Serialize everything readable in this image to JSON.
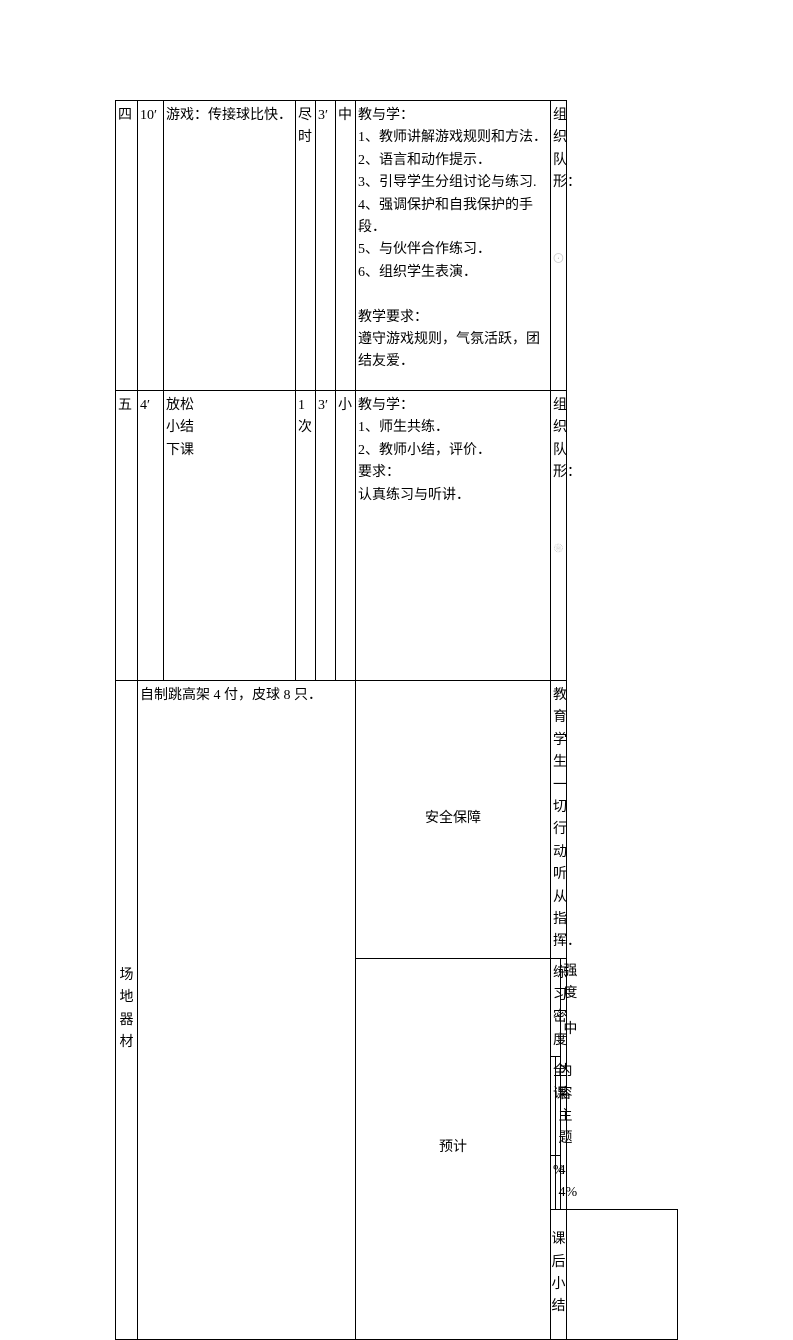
{
  "rows": [
    {
      "num": "四",
      "time": "10′",
      "content": "游戏：传接球比快．",
      "reps_top": "尽",
      "reps_bot": "时",
      "dur": "3′",
      "intensity": "中",
      "teaching": "教与学：\n1、教师讲解游戏规则和方法．\n2、语言和动作提示．\n3、引导学生分组讨论与练习.\n4、强调保护和自我保护的手段．\n5、与伙伴合作练习．\n6、组织学生表演．\n\n教学要求：\n遵守游戏规则，气氛活跃，团结友爱．",
      "formation_label": "组织队形："
    },
    {
      "num": "五",
      "time": "4′",
      "content_lines": [
        "放松",
        "小结",
        "下课"
      ],
      "reps": "1次",
      "dur": "3′",
      "intensity": "小",
      "teaching": "教与学：\n1、师生共练．\n2、教师小结，评价．\n要求：\n认真练习与听讲．",
      "formation_label": "组织队形："
    }
  ],
  "bottom": {
    "equip_label": "场地器材",
    "equip_text": "自制跳高架 4 付，皮球 8 只．",
    "safety_label": "安全保障",
    "safety_text": "教育学生一切行动听从指挥．",
    "forecast": "预计",
    "density_label": "练习密度",
    "intensity_label": "强度",
    "whole": "全课",
    "content_topic": "内容主题",
    "intensity_value": "中",
    "whole_val": "%",
    "topic_val": "44%",
    "summary_label": "课后小结"
  },
  "styling": {
    "page_bg": "#ffffff",
    "text_color": "#000000",
    "border_color": "#000000",
    "font_family": "SimSun",
    "font_size_pt": 10.5,
    "diagram1": {
      "type": "circle-of-circles",
      "outer_radius": 45,
      "dot_count": 28,
      "dot_radius": 3.2,
      "dot_fill": "#ffffff",
      "dot_stroke": "#000000",
      "center_symbol": "△"
    },
    "diagram2": {
      "type": "double-ring-scatter",
      "ring1_radius": 40,
      "ring1_count": 16,
      "ring1_fill": "#ffffff",
      "ring1_stroke": "#000000",
      "ring1_dot_r": 3,
      "ring2_radius": 24,
      "ring2_count": 12,
      "ring2_fill": "#888888",
      "ring2_stroke": "none",
      "ring2_dot_r": 2.5,
      "inner_dots_radius": 12,
      "inner_count": 6,
      "inner_fill": "#ffffff",
      "inner_stroke": "#000000",
      "inner_dot_r": 2.5,
      "center_symbol": "△"
    }
  }
}
